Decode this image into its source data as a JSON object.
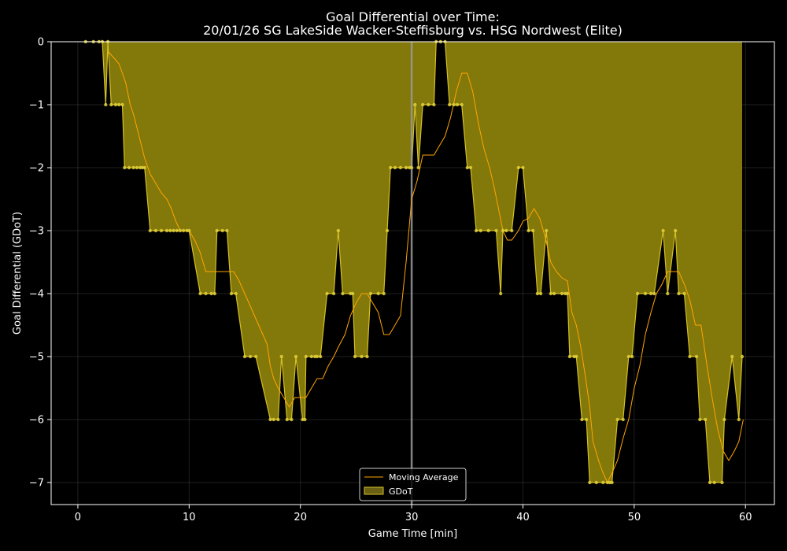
{
  "chart_data": {
    "type": "area",
    "title": "Goal Differential over Time:",
    "subtitle": "20/01/26 SG LakeSide Wacker-Steffisburg  vs.  HSG Nordwest (Elite)",
    "xlabel": "Game Time [min]",
    "ylabel": "Goal Differential (GDoT)",
    "xlim": [
      -2.4,
      62.6
    ],
    "ylim": [
      -7.35,
      0
    ],
    "xticks": [
      "0",
      "10",
      "20",
      "30",
      "40",
      "50",
      "60"
    ],
    "yticks": [
      "0",
      "−1",
      "−2",
      "−3",
      "−4",
      "−5",
      "−6",
      "−7"
    ],
    "grid": true,
    "halftime_line": 30,
    "legend_position": "lower-center",
    "series": [
      {
        "name": "GDoT",
        "color": "#d4c026",
        "x": [
          0.7,
          1.4,
          1.9,
          2.2,
          2.5,
          2.7,
          3.0,
          3.4,
          3.7,
          4.0,
          4.2,
          4.6,
          5.0,
          5.3,
          5.6,
          5.8,
          6.0,
          6.5,
          7.0,
          7.5,
          8.0,
          8.3,
          8.6,
          8.9,
          9.2,
          9.5,
          9.8,
          10.0,
          11.0,
          11.5,
          12.0,
          12.3,
          12.5,
          13.0,
          13.4,
          13.8,
          14.2,
          15.0,
          15.5,
          16.0,
          17.3,
          17.6,
          18.0,
          18.3,
          18.8,
          19.2,
          19.6,
          20.2,
          20.4,
          20.5,
          21.0,
          21.3,
          21.5,
          21.8,
          22.4,
          23.0,
          23.4,
          23.8,
          24.5,
          24.7,
          24.9,
          25.5,
          26.0,
          26.3,
          27.0,
          27.5,
          27.8,
          28.1,
          28.5,
          29.0,
          29.5,
          29.8,
          30.0,
          30.3,
          30.6,
          31.0,
          31.5,
          32.0,
          32.2,
          32.6,
          33.0,
          33.4,
          33.8,
          34.1,
          34.5,
          35.0,
          35.3,
          35.8,
          36.2,
          36.9,
          37.6,
          38.0,
          38.2,
          38.5,
          39.0,
          39.6,
          40.0,
          40.5,
          40.9,
          41.3,
          41.6,
          42.1,
          42.5,
          42.8,
          43.5,
          43.8,
          44.0,
          44.2,
          44.6,
          44.8,
          45.3,
          45.7,
          46.0,
          46.6,
          47.2,
          47.6,
          47.8,
          48.0,
          48.5,
          49.0,
          49.5,
          49.8,
          50.3,
          51.0,
          51.5,
          51.8,
          52.6,
          53.0,
          53.7,
          54.0,
          54.5,
          55.0,
          55.6,
          55.9,
          56.4,
          56.8,
          57.2,
          57.9,
          58.1,
          58.8,
          59.4,
          59.7
        ],
        "values": [
          0,
          0,
          0,
          0,
          -1,
          0,
          -1,
          -1,
          -1,
          -1,
          -2,
          -2,
          -2,
          -2,
          -2,
          -2,
          -2,
          -3,
          -3,
          -3,
          -3,
          -3,
          -3,
          -3,
          -3,
          -3,
          -3,
          -3,
          -4,
          -4,
          -4,
          -4,
          -3,
          -3,
          -3,
          -4,
          -4,
          -5,
          -5,
          -5,
          -6,
          -6,
          -6,
          -5,
          -6,
          -6,
          -5,
          -6,
          -6,
          -5,
          -5,
          -5,
          -5,
          -5,
          -4,
          -4,
          -3,
          -4,
          -4,
          -4,
          -5,
          -5,
          -5,
          -4,
          -4,
          -4,
          -3,
          -2,
          -2,
          -2,
          -2,
          -2,
          -2,
          -1,
          -2,
          -1,
          -1,
          -1,
          0,
          0,
          0,
          -1,
          -1,
          -1,
          -1,
          -2,
          -2,
          -3,
          -3,
          -3,
          -3,
          -4,
          -3,
          -3,
          -3,
          -2,
          -2,
          -3,
          -3,
          -4,
          -4,
          -3,
          -4,
          -4,
          -4,
          -4,
          -4,
          -5,
          -5,
          -5,
          -6,
          -6,
          -7,
          -7,
          -7,
          -7,
          -7,
          -7,
          -6,
          -6,
          -5,
          -5,
          -4,
          -4,
          -4,
          -4,
          -3,
          -4,
          -3,
          -4,
          -4,
          -5,
          -5,
          -6,
          -6,
          -7,
          -7,
          -7,
          -6,
          -5,
          -6,
          -5
        ]
      },
      {
        "name": "Moving Average",
        "color": "#ffa500",
        "x": [
          2.7,
          3.2,
          3.7,
          4.0,
          4.3,
          4.7,
          5.0,
          5.5,
          6.0,
          6.5,
          7.0,
          7.5,
          8.0,
          8.4,
          8.8,
          9.2,
          9.6,
          10.0,
          10.5,
          11.0,
          11.5,
          12.0,
          12.5,
          13.0,
          13.5,
          14.0,
          14.5,
          15.0,
          15.5,
          16.0,
          16.5,
          17.0,
          17.3,
          17.6,
          18.0,
          18.5,
          19.0,
          19.5,
          20.0,
          20.5,
          21.0,
          21.5,
          22.0,
          22.5,
          23.0,
          23.4,
          24.0,
          24.5,
          25.0,
          25.5,
          26.0,
          26.5,
          27.0,
          27.5,
          28.0,
          28.5,
          29.0,
          29.5,
          30.0,
          30.5,
          31.0,
          31.5,
          32.0,
          32.5,
          33.0,
          33.5,
          34.0,
          34.5,
          35.0,
          35.5,
          36.0,
          36.5,
          37.0,
          37.4,
          37.8,
          38.2,
          38.6,
          39.0,
          39.6,
          40.0,
          40.5,
          41.0,
          41.5,
          42.0,
          42.5,
          43.0,
          43.5,
          44.0,
          44.4,
          44.8,
          45.2,
          45.6,
          46.0,
          46.3,
          46.8,
          47.2,
          47.6,
          48.0,
          48.5,
          49.0,
          49.5,
          50.0,
          50.5,
          51.0,
          51.5,
          52.0,
          52.5,
          53.0,
          53.5,
          54.0,
          54.5,
          55.0,
          55.5,
          56.0,
          56.5,
          57.0,
          57.5,
          58.0,
          58.5,
          59.0,
          59.4,
          59.8
        ],
        "values": [
          -0.15,
          -0.25,
          -0.35,
          -0.5,
          -0.65,
          -1.0,
          -1.15,
          -1.5,
          -1.85,
          -2.1,
          -2.25,
          -2.4,
          -2.5,
          -2.65,
          -2.85,
          -3.0,
          -3.0,
          -3.0,
          -3.15,
          -3.35,
          -3.65,
          -3.65,
          -3.65,
          -3.65,
          -3.65,
          -3.65,
          -3.8,
          -4.0,
          -4.2,
          -4.4,
          -4.6,
          -4.8,
          -5.15,
          -5.35,
          -5.5,
          -5.65,
          -5.8,
          -5.65,
          -5.65,
          -5.65,
          -5.5,
          -5.35,
          -5.35,
          -5.15,
          -5.0,
          -4.85,
          -4.65,
          -4.35,
          -4.15,
          -4.0,
          -4.0,
          -4.15,
          -4.3,
          -4.65,
          -4.65,
          -4.5,
          -4.35,
          -3.5,
          -2.5,
          -2.2,
          -1.8,
          -1.8,
          -1.8,
          -1.65,
          -1.5,
          -1.2,
          -0.8,
          -0.5,
          -0.5,
          -0.8,
          -1.3,
          -1.7,
          -2.0,
          -2.3,
          -2.65,
          -3.0,
          -3.15,
          -3.15,
          -3.0,
          -2.85,
          -2.8,
          -2.65,
          -2.8,
          -3.1,
          -3.5,
          -3.65,
          -3.75,
          -3.8,
          -4.3,
          -4.5,
          -4.85,
          -5.3,
          -5.8,
          -6.35,
          -6.65,
          -6.85,
          -7.0,
          -6.85,
          -6.65,
          -6.3,
          -6.0,
          -5.5,
          -5.15,
          -4.65,
          -4.3,
          -4.0,
          -3.85,
          -3.65,
          -3.65,
          -3.65,
          -3.85,
          -4.1,
          -4.5,
          -4.5,
          -5.1,
          -5.65,
          -6.15,
          -6.5,
          -6.65,
          -6.5,
          -6.35,
          -6.0
        ]
      }
    ]
  }
}
